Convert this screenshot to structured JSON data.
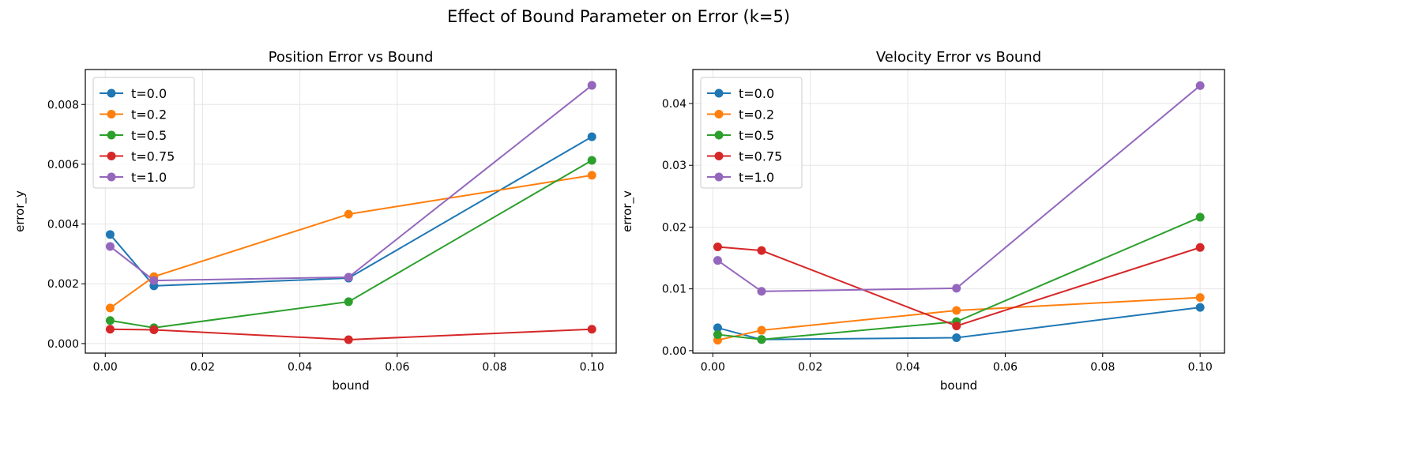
{
  "suptitle": "Effect of Bound Parameter on Error (k=5)",
  "colors": {
    "t=0.0": "#1f77b4",
    "t=0.2": "#ff7f0e",
    "t=0.5": "#2ca02c",
    "t=0.75": "#d62728",
    "t=1.0": "#9467bd"
  },
  "chart_data": [
    {
      "type": "line",
      "title": "Position Error vs Bound",
      "xlabel": "bound",
      "ylabel": "error_y",
      "xlim": [
        -0.0041,
        0.105
      ],
      "ylim": [
        -0.00032,
        0.00917
      ],
      "xticks": [
        0.0,
        0.02,
        0.04,
        0.06,
        0.08,
        0.1
      ],
      "xtick_labels": [
        "0.00",
        "0.02",
        "0.04",
        "0.06",
        "0.08",
        "0.10"
      ],
      "yticks": [
        0.0,
        0.002,
        0.004,
        0.006,
        0.008
      ],
      "ytick_labels": [
        "0.000",
        "0.002",
        "0.004",
        "0.006",
        "0.008"
      ],
      "grid": true,
      "legend": "upper-left",
      "x": [
        0.001,
        0.01,
        0.05,
        0.1
      ],
      "series": [
        {
          "name": "t=0.0",
          "values": [
            0.00365,
            0.00193,
            0.00219,
            0.00692
          ]
        },
        {
          "name": "t=0.2",
          "values": [
            0.00119,
            0.00224,
            0.00433,
            0.00563
          ]
        },
        {
          "name": "t=0.5",
          "values": [
            0.00077,
            0.00053,
            0.0014,
            0.00613
          ]
        },
        {
          "name": "t=0.75",
          "values": [
            0.00048,
            0.00046,
            0.00013,
            0.00048
          ]
        },
        {
          "name": "t=1.0",
          "values": [
            0.00325,
            0.00211,
            0.00222,
            0.00864
          ]
        }
      ]
    },
    {
      "type": "line",
      "title": "Velocity Error vs Bound",
      "xlabel": "bound",
      "ylabel": "error_v",
      "xlim": [
        -0.0041,
        0.105
      ],
      "ylim": [
        -0.0004,
        0.0455
      ],
      "xticks": [
        0.0,
        0.02,
        0.04,
        0.06,
        0.08,
        0.1
      ],
      "xtick_labels": [
        "0.00",
        "0.02",
        "0.04",
        "0.06",
        "0.08",
        "0.10"
      ],
      "yticks": [
        0.0,
        0.01,
        0.02,
        0.03,
        0.04
      ],
      "ytick_labels": [
        "0.00",
        "0.01",
        "0.02",
        "0.03",
        "0.04"
      ],
      "grid": true,
      "legend": "upper-left",
      "x": [
        0.001,
        0.01,
        0.05,
        0.1
      ],
      "series": [
        {
          "name": "t=0.0",
          "values": [
            0.0037,
            0.0018,
            0.0021,
            0.007
          ]
        },
        {
          "name": "t=0.2",
          "values": [
            0.0017,
            0.0033,
            0.0065,
            0.0086
          ]
        },
        {
          "name": "t=0.5",
          "values": [
            0.0026,
            0.0018,
            0.0047,
            0.0216
          ]
        },
        {
          "name": "t=0.75",
          "values": [
            0.0168,
            0.0162,
            0.004,
            0.0167
          ]
        },
        {
          "name": "t=1.0",
          "values": [
            0.0146,
            0.0096,
            0.0101,
            0.0429
          ]
        }
      ]
    }
  ]
}
